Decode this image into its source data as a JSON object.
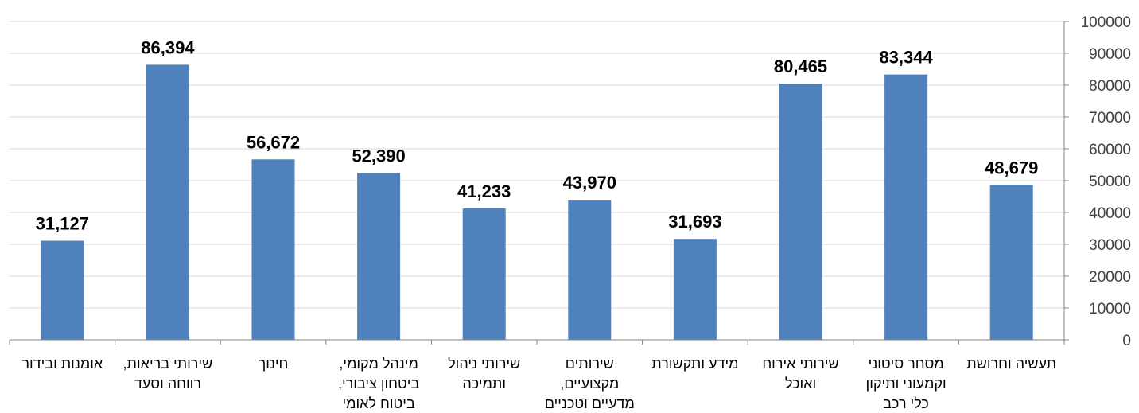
{
  "chart_data": {
    "type": "bar",
    "categories": [
      [
        "תעשיה וחרושת"
      ],
      [
        "מסחר סיטוני",
        "וקמעוני ותיקון",
        "כלי רכב"
      ],
      [
        "שירותי אירוח",
        "ואוכל"
      ],
      [
        "מידע ותקשורת"
      ],
      [
        "שירותים",
        "מקצועיים,",
        "מדעיים וטכניים"
      ],
      [
        "שירותי ניהול",
        "ותמיכה"
      ],
      [
        "מינהל מקומי,",
        "ביטחון ציבורי,",
        "ביטוח לאומי"
      ],
      [
        "חינוך"
      ],
      [
        "שירותי בריאות,",
        "רווחה וסעד"
      ],
      [
        "אומנות ובידור"
      ]
    ],
    "values": [
      48679,
      83344,
      80465,
      31693,
      43970,
      41233,
      52390,
      56672,
      86394,
      31127
    ],
    "data_labels": [
      "48,679",
      "83,344",
      "80,465",
      "31,693",
      "43,970",
      "41,233",
      "52,390",
      "56,672",
      "86,394",
      "31,127"
    ],
    "y_ticks": [
      "0",
      "10000",
      "20000",
      "30000",
      "40000",
      "50000",
      "60000",
      "70000",
      "80000",
      "90000",
      "100000"
    ],
    "ylim": [
      0,
      100000
    ],
    "y_axis_side": "right",
    "category_order": "right-to-left",
    "grid": true,
    "bar_color": "#4f81bd"
  }
}
